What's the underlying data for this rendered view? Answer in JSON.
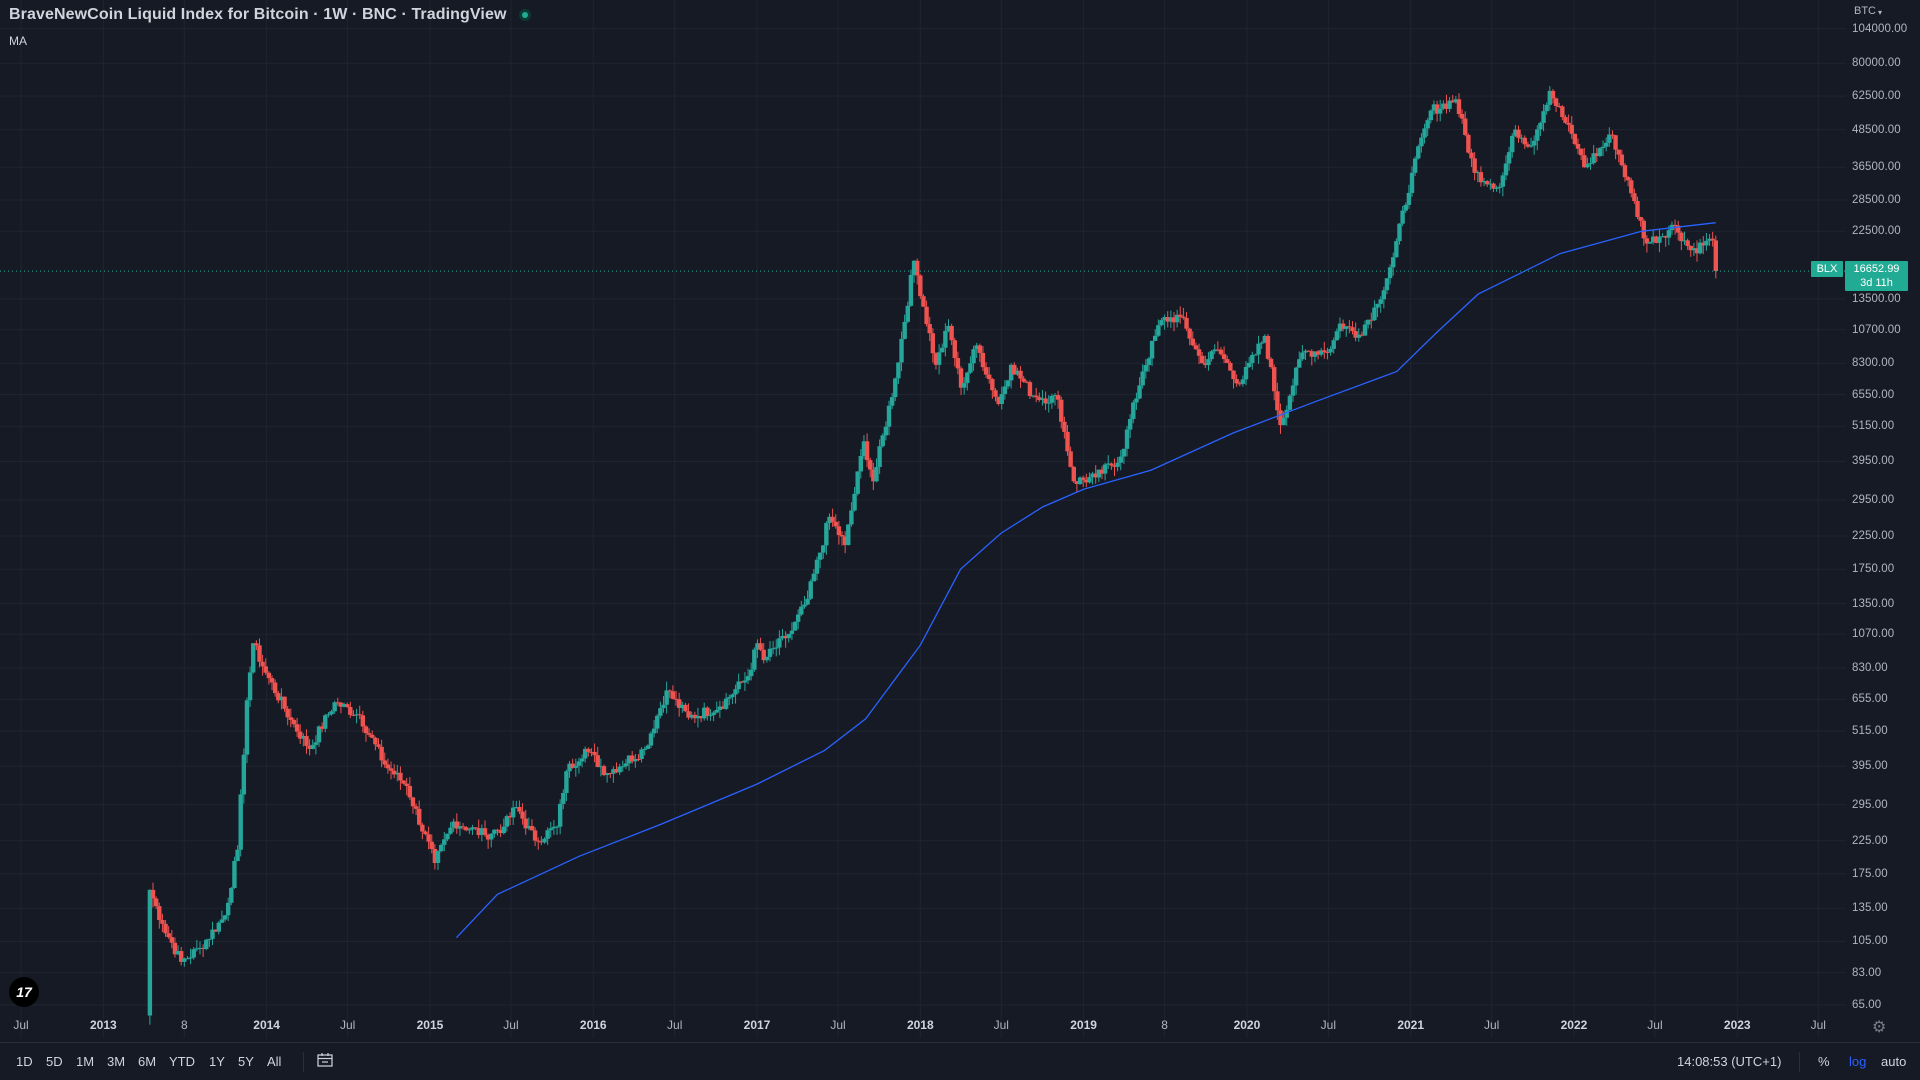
{
  "header": {
    "title": "BraveNewCoin Liquid Index for Bitcoin · 1W · BNC · TradingView",
    "indicator_label": "MA",
    "currency": "BTC"
  },
  "colors": {
    "background": "#161a25",
    "up": "#26a69a",
    "down": "#ef5350",
    "ma_line": "#2962ff",
    "grid": "#1f2430",
    "accent": "#22ab94",
    "text": "#b2b5be"
  },
  "price_axis": {
    "labels": [
      "104000.00",
      "80000.00",
      "62500.00",
      "48500.00",
      "36500.00",
      "28500.00",
      "22500.00",
      "13500.00",
      "10700.00",
      "8300.00",
      "6550.00",
      "5150.00",
      "3950.00",
      "2950.00",
      "2250.00",
      "1750.00",
      "1350.00",
      "1070.00",
      "830.00",
      "655.00",
      "515.00",
      "395.00",
      "295.00",
      "225.00",
      "175.00",
      "135.00",
      "105.00",
      "83.00",
      "65.00"
    ]
  },
  "time_axis": {
    "labels": [
      {
        "text": "Jul",
        "year": false
      },
      {
        "text": "2013",
        "year": true
      },
      {
        "text": "8",
        "year": false
      },
      {
        "text": "2014",
        "year": true
      },
      {
        "text": "Jul",
        "year": false
      },
      {
        "text": "2015",
        "year": true
      },
      {
        "text": "Jul",
        "year": false
      },
      {
        "text": "2016",
        "year": true
      },
      {
        "text": "Jul",
        "year": false
      },
      {
        "text": "2017",
        "year": true
      },
      {
        "text": "Jul",
        "year": false
      },
      {
        "text": "2018",
        "year": true
      },
      {
        "text": "Jul",
        "year": false
      },
      {
        "text": "2019",
        "year": true
      },
      {
        "text": "8",
        "year": false
      },
      {
        "text": "2020",
        "year": true
      },
      {
        "text": "Jul",
        "year": false
      },
      {
        "text": "2021",
        "year": true
      },
      {
        "text": "Jul",
        "year": false
      },
      {
        "text": "2022",
        "year": true
      },
      {
        "text": "Jul",
        "year": false
      },
      {
        "text": "2023",
        "year": true
      },
      {
        "text": "Jul",
        "year": false
      }
    ]
  },
  "last_price": {
    "symbol": "BLX",
    "value": "16652.99",
    "countdown": "3d 11h"
  },
  "logo_text": "17",
  "bottom_bar": {
    "ranges": [
      "1D",
      "5D",
      "1M",
      "3M",
      "6M",
      "YTD",
      "1Y",
      "5Y",
      "All"
    ],
    "clock": "14:08:53 (UTC+1)",
    "percent_label": "%",
    "log_label": "log",
    "auto_label": "auto",
    "log_active": true
  },
  "chart_data": {
    "type": "candlestick",
    "interval": "1W",
    "scale": "log",
    "y_range": [
      58,
      118000
    ],
    "x_range": [
      "2012-05-15",
      "2023-09-01"
    ],
    "price_ticks": [
      104000,
      80000,
      62500,
      48500,
      36500,
      28500,
      22500,
      13500,
      10700,
      8300,
      6550,
      5150,
      3950,
      2950,
      2250,
      1750,
      1350,
      1070,
      830,
      655,
      515,
      395,
      295,
      225,
      175,
      135,
      105,
      83,
      65
    ],
    "x_ticks": [
      {
        "label": "Jul",
        "date": "2012-07-01"
      },
      {
        "label": "2013",
        "date": "2013-01-01"
      },
      {
        "label": "8",
        "date": "2013-07-01"
      },
      {
        "label": "2014",
        "date": "2014-01-01"
      },
      {
        "label": "Jul",
        "date": "2014-07-01"
      },
      {
        "label": "2015",
        "date": "2015-01-01"
      },
      {
        "label": "Jul",
        "date": "2015-07-01"
      },
      {
        "label": "2016",
        "date": "2016-01-01"
      },
      {
        "label": "Jul",
        "date": "2016-07-01"
      },
      {
        "label": "2017",
        "date": "2017-01-01"
      },
      {
        "label": "Jul",
        "date": "2017-07-01"
      },
      {
        "label": "2018",
        "date": "2018-01-01"
      },
      {
        "label": "Jul",
        "date": "2018-07-01"
      },
      {
        "label": "2019",
        "date": "2019-01-01"
      },
      {
        "label": "8",
        "date": "2019-07-01"
      },
      {
        "label": "2020",
        "date": "2020-01-01"
      },
      {
        "label": "Jul",
        "date": "2020-07-01"
      },
      {
        "label": "2021",
        "date": "2021-01-01"
      },
      {
        "label": "Jul",
        "date": "2021-07-01"
      },
      {
        "label": "2022",
        "date": "2022-01-01"
      },
      {
        "label": "Jul",
        "date": "2022-07-01"
      },
      {
        "label": "2023",
        "date": "2023-01-01"
      },
      {
        "label": "Jul",
        "date": "2023-07-01"
      }
    ],
    "last_price": 16652.99,
    "anchors": [
      {
        "date": "2013-04-08",
        "close": 60
      },
      {
        "date": "2013-04-15",
        "close": 155
      },
      {
        "date": "2013-05-13",
        "close": 120
      },
      {
        "date": "2013-06-24",
        "close": 90
      },
      {
        "date": "2013-08-05",
        "close": 100
      },
      {
        "date": "2013-09-30",
        "close": 128
      },
      {
        "date": "2013-10-28",
        "close": 210
      },
      {
        "date": "2013-11-18",
        "close": 650
      },
      {
        "date": "2013-12-02",
        "close": 1000
      },
      {
        "date": "2013-12-30",
        "close": 800
      },
      {
        "date": "2014-02-24",
        "close": 560
      },
      {
        "date": "2014-04-07",
        "close": 450
      },
      {
        "date": "2014-06-02",
        "close": 640
      },
      {
        "date": "2014-07-28",
        "close": 580
      },
      {
        "date": "2014-09-22",
        "close": 400
      },
      {
        "date": "2014-11-10",
        "close": 340
      },
      {
        "date": "2015-01-12",
        "close": 190
      },
      {
        "date": "2015-02-23",
        "close": 260
      },
      {
        "date": "2015-05-04",
        "close": 235
      },
      {
        "date": "2015-06-15",
        "close": 250
      },
      {
        "date": "2015-07-13",
        "close": 290
      },
      {
        "date": "2015-08-24",
        "close": 225
      },
      {
        "date": "2015-10-12",
        "close": 250
      },
      {
        "date": "2015-11-02",
        "close": 380
      },
      {
        "date": "2015-12-14",
        "close": 450
      },
      {
        "date": "2016-02-01",
        "close": 375
      },
      {
        "date": "2016-04-25",
        "close": 450
      },
      {
        "date": "2016-06-13",
        "close": 700
      },
      {
        "date": "2016-08-01",
        "close": 570
      },
      {
        "date": "2016-10-10",
        "close": 620
      },
      {
        "date": "2016-12-12",
        "close": 780
      },
      {
        "date": "2017-01-02",
        "close": 1000
      },
      {
        "date": "2017-01-16",
        "close": 880
      },
      {
        "date": "2017-03-20",
        "close": 1100
      },
      {
        "date": "2017-04-24",
        "close": 1400
      },
      {
        "date": "2017-06-12",
        "close": 2600
      },
      {
        "date": "2017-07-17",
        "close": 2100
      },
      {
        "date": "2017-08-28",
        "close": 4600
      },
      {
        "date": "2017-09-18",
        "close": 3400
      },
      {
        "date": "2017-11-06",
        "close": 7400
      },
      {
        "date": "2017-12-18",
        "close": 18000
      },
      {
        "date": "2018-02-05",
        "close": 8200
      },
      {
        "date": "2018-03-05",
        "close": 11000
      },
      {
        "date": "2018-04-02",
        "close": 6900
      },
      {
        "date": "2018-05-07",
        "close": 9500
      },
      {
        "date": "2018-06-25",
        "close": 6100
      },
      {
        "date": "2018-07-23",
        "close": 8200
      },
      {
        "date": "2018-09-10",
        "close": 6500
      },
      {
        "date": "2018-11-05",
        "close": 6300
      },
      {
        "date": "2018-12-10",
        "close": 3400
      },
      {
        "date": "2019-01-28",
        "close": 3500
      },
      {
        "date": "2019-03-25",
        "close": 4100
      },
      {
        "date": "2019-05-13",
        "close": 7800
      },
      {
        "date": "2019-06-24",
        "close": 11500
      },
      {
        "date": "2019-08-05",
        "close": 11800
      },
      {
        "date": "2019-09-23",
        "close": 8300
      },
      {
        "date": "2019-10-28",
        "close": 9200
      },
      {
        "date": "2019-12-16",
        "close": 7100
      },
      {
        "date": "2020-02-10",
        "close": 10200
      },
      {
        "date": "2020-03-16",
        "close": 5200
      },
      {
        "date": "2020-05-04",
        "close": 9000
      },
      {
        "date": "2020-07-06",
        "close": 9250
      },
      {
        "date": "2020-07-27",
        "close": 11200
      },
      {
        "date": "2020-09-07",
        "close": 10300
      },
      {
        "date": "2020-10-19",
        "close": 13000
      },
      {
        "date": "2020-11-23",
        "close": 18500
      },
      {
        "date": "2021-01-04",
        "close": 35000
      },
      {
        "date": "2021-02-15",
        "close": 56000
      },
      {
        "date": "2021-04-12",
        "close": 61000
      },
      {
        "date": "2021-05-24",
        "close": 35000
      },
      {
        "date": "2021-07-19",
        "close": 31500
      },
      {
        "date": "2021-08-23",
        "close": 48500
      },
      {
        "date": "2021-09-27",
        "close": 43000
      },
      {
        "date": "2021-11-08",
        "close": 65000
      },
      {
        "date": "2022-01-10",
        "close": 42000
      },
      {
        "date": "2022-01-24",
        "close": 36500
      },
      {
        "date": "2022-03-28",
        "close": 46500
      },
      {
        "date": "2022-05-09",
        "close": 30000
      },
      {
        "date": "2022-06-13",
        "close": 20500
      },
      {
        "date": "2022-08-15",
        "close": 23500
      },
      {
        "date": "2022-09-19",
        "close": 19500
      },
      {
        "date": "2022-11-07",
        "close": 21000
      },
      {
        "date": "2022-11-14",
        "close": 16652.99
      }
    ],
    "moving_average": [
      {
        "date": "2015-03-01",
        "value": 108
      },
      {
        "date": "2015-06-01",
        "value": 150
      },
      {
        "date": "2015-12-01",
        "value": 200
      },
      {
        "date": "2016-06-01",
        "value": 255
      },
      {
        "date": "2017-01-01",
        "value": 345
      },
      {
        "date": "2017-06-01",
        "value": 445
      },
      {
        "date": "2017-09-01",
        "value": 565
      },
      {
        "date": "2018-01-01",
        "value": 985
      },
      {
        "date": "2018-04-01",
        "value": 1750
      },
      {
        "date": "2018-07-01",
        "value": 2300
      },
      {
        "date": "2018-10-01",
        "value": 2800
      },
      {
        "date": "2019-01-01",
        "value": 3200
      },
      {
        "date": "2019-06-01",
        "value": 3700
      },
      {
        "date": "2019-12-01",
        "value": 4900
      },
      {
        "date": "2020-06-01",
        "value": 6200
      },
      {
        "date": "2020-12-01",
        "value": 7800
      },
      {
        "date": "2021-03-01",
        "value": 10500
      },
      {
        "date": "2021-06-01",
        "value": 14000
      },
      {
        "date": "2021-12-01",
        "value": 19000
      },
      {
        "date": "2022-06-01",
        "value": 22500
      },
      {
        "date": "2022-11-14",
        "value": 24000
      }
    ]
  }
}
